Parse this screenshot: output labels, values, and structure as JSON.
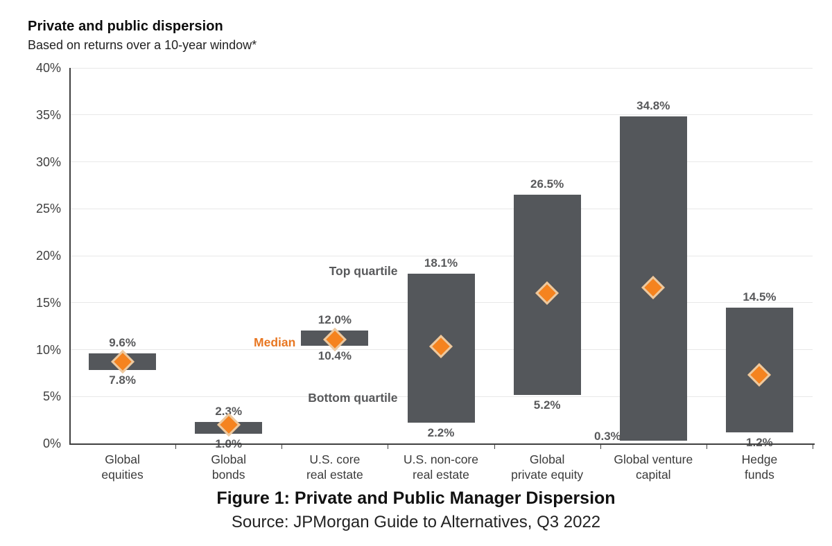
{
  "header": {
    "title": "Private and public dispersion",
    "subtitle": "Based on returns over a 10-year window*"
  },
  "chart_data": {
    "type": "bar",
    "subtype": "floating-range-bars-with-median-markers",
    "title": "Private and public dispersion",
    "subtitle": "Based on returns over a 10-year window*",
    "xlabel": "",
    "ylabel": "",
    "ylim": [
      0,
      40
    ],
    "ytick_step": 5,
    "ytick_suffix": "%",
    "grid": "horizontal",
    "legend_position": "none",
    "categories": [
      "Global\nequities",
      "Global\nbonds",
      "U.S. core\nreal estate",
      "U.S. non-core\nreal estate",
      "Global\nprivate equity",
      "Global venture\ncapital",
      "Hedge\nfunds"
    ],
    "series": [
      {
        "name": "Bottom quartile",
        "values": [
          7.8,
          1.0,
          10.4,
          2.2,
          5.2,
          0.3,
          1.2
        ]
      },
      {
        "name": "Top quartile",
        "values": [
          9.6,
          2.3,
          12.0,
          18.1,
          26.5,
          34.8,
          14.5
        ]
      },
      {
        "name": "Median",
        "values": [
          8.7,
          2.0,
          11.1,
          10.3,
          16.0,
          16.6,
          7.3
        ]
      }
    ],
    "value_labels": {
      "top": [
        "9.6%",
        "2.3%",
        "12.0%",
        "18.1%",
        "26.5%",
        "34.8%",
        "14.5%"
      ],
      "bottom": [
        "7.8%",
        "1.0%",
        "10.4%",
        "2.2%",
        "5.2%",
        "0.3%",
        "1.2%"
      ],
      "bottom_placement": [
        "below",
        "below",
        "below",
        "below",
        "below",
        "left",
        "below"
      ]
    },
    "annotations": [
      {
        "text": "Top quartile",
        "cat": 3,
        "value": 18.3,
        "gap": 14,
        "color": "#58595b"
      },
      {
        "text": "Median",
        "cat": 2,
        "value": 10.7,
        "gap": 8,
        "color": "#e87722"
      },
      {
        "text": "Bottom quartile",
        "cat": 3,
        "value": 4.8,
        "gap": 14,
        "color": "#58595b"
      }
    ],
    "colors": {
      "bar": "#54575b",
      "marker_fill": "#f5831f",
      "marker_edge": "#ecc9a0",
      "grid": "#e8e8e8",
      "axis": "#3f3f3f"
    }
  },
  "caption": {
    "title": "Figure 1: Private and Public Manager Dispersion",
    "source": "Source: JPMorgan Guide to Alternatives, Q3 2022"
  }
}
